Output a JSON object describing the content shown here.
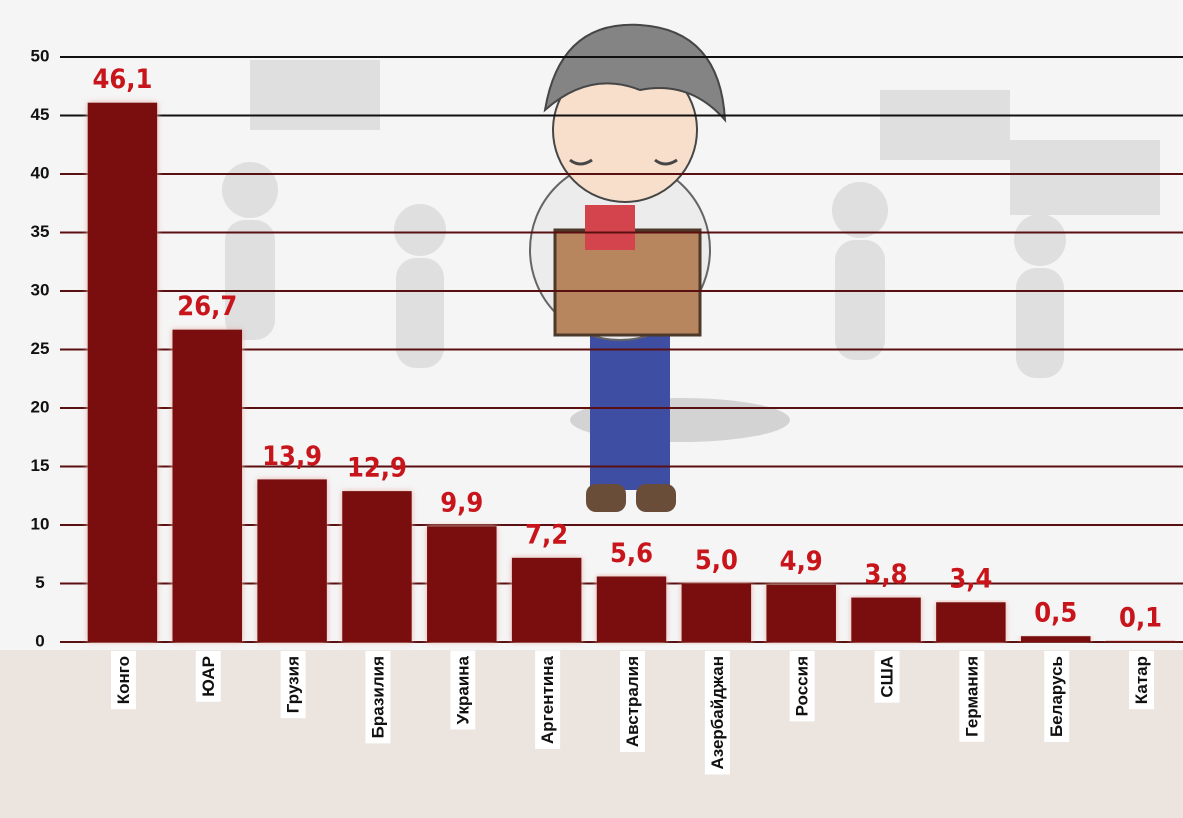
{
  "chart_data": {
    "type": "bar",
    "categories": [
      "Конго",
      "ЮАР",
      "Грузия",
      "Бразилия",
      "Украина",
      "Аргентина",
      "Австралия",
      "Азербайджан",
      "Россия",
      "США",
      "Германия",
      "Беларусь",
      "Катар"
    ],
    "values": [
      46.1,
      26.7,
      13.9,
      12.9,
      9.9,
      7.2,
      5.6,
      5.0,
      4.9,
      3.8,
      3.4,
      0.5,
      0.1
    ],
    "value_labels": [
      "46,1",
      "26,7",
      "13,9",
      "12,9",
      "9,9",
      "7,2",
      "5,6",
      "5,0",
      "4,9",
      "3,8",
      "3,4",
      "0,5",
      "0,1"
    ],
    "color": "#7a0c0c",
    "ylim": [
      0,
      50
    ],
    "yticks": [
      0,
      5,
      10,
      15,
      20,
      25,
      30,
      35,
      40,
      45,
      50
    ],
    "grid": true
  }
}
